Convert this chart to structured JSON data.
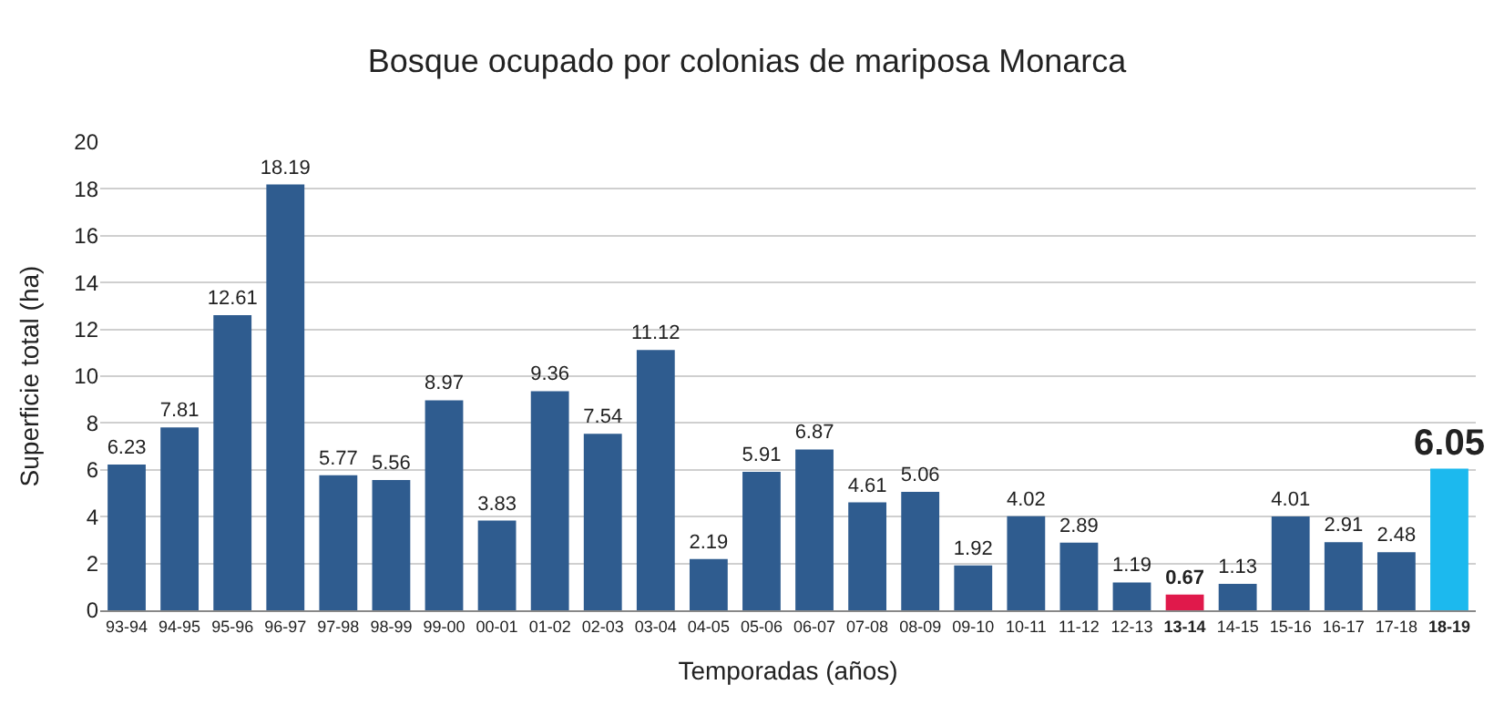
{
  "chart_data": {
    "type": "bar",
    "title": "Bosque ocupado por colonias de mariposa Monarca",
    "xlabel": "Temporadas (años)",
    "ylabel": "Superficie total (ha)",
    "categories": [
      "93-94",
      "94-95",
      "95-96",
      "96-97",
      "97-98",
      "98-99",
      "99-00",
      "00-01",
      "01-02",
      "02-03",
      "03-04",
      "04-05",
      "05-06",
      "06-07",
      "07-08",
      "08-09",
      "09-10",
      "10-11",
      "11-12",
      "12-13",
      "13-14",
      "14-15",
      "15-16",
      "16-17",
      "17-18",
      "18-19"
    ],
    "values": [
      6.23,
      7.81,
      12.61,
      18.19,
      5.77,
      5.56,
      8.97,
      3.83,
      9.36,
      7.54,
      11.12,
      2.19,
      5.91,
      6.87,
      4.61,
      5.06,
      1.92,
      4.02,
      2.89,
      1.19,
      0.67,
      1.13,
      4.01,
      2.91,
      2.48,
      6.05
    ],
    "colors": [
      "#2f5c8f",
      "#2f5c8f",
      "#2f5c8f",
      "#2f5c8f",
      "#2f5c8f",
      "#2f5c8f",
      "#2f5c8f",
      "#2f5c8f",
      "#2f5c8f",
      "#2f5c8f",
      "#2f5c8f",
      "#2f5c8f",
      "#2f5c8f",
      "#2f5c8f",
      "#2f5c8f",
      "#2f5c8f",
      "#2f5c8f",
      "#2f5c8f",
      "#2f5c8f",
      "#2f5c8f",
      "#e0194b",
      "#2f5c8f",
      "#2f5c8f",
      "#2f5c8f",
      "#2f5c8f",
      "#1cb9ee"
    ],
    "data_labels": true,
    "ylim": [
      0,
      20
    ],
    "yticks": [
      0,
      2,
      4,
      6,
      8,
      10,
      12,
      14,
      16,
      18,
      20
    ],
    "grid": "y"
  }
}
